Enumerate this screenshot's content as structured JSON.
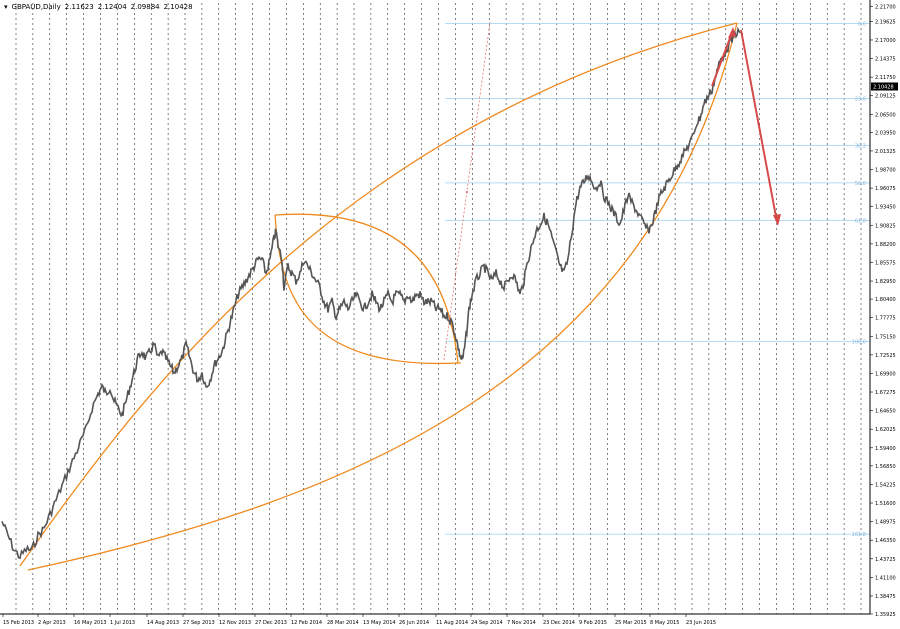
{
  "header": {
    "symbol": "GBPAUD,Daily",
    "open": "2.11623",
    "high": "2.12404",
    "low": "2.09884",
    "close": "2.10428"
  },
  "colors": {
    "background": "#ffffff",
    "price_line": "#555555",
    "grid": "#000000",
    "fib_line": "#9fcfee",
    "fib_label": "#7fb6df",
    "curve": "#f08a1e",
    "arrow": "#d64a4a",
    "trend_dotted": "#e06060",
    "price_badge_bg": "#000000",
    "price_badge_text": "#ffffff"
  },
  "chart_data": {
    "type": "line",
    "symbol": "GBPAUD",
    "timeframe": "Daily",
    "grid": true,
    "ylim": [
      1.35925,
      2.2222
    ],
    "current_price": 2.10428,
    "y_ticks": [
      "2.21700",
      "2.19625",
      "2.17000",
      "2.14375",
      "2.11750",
      "2.09125",
      "2.06500",
      "2.03950",
      "2.01325",
      "1.98700",
      "1.96075",
      "1.93450",
      "1.90825",
      "1.88200",
      "1.85575",
      "1.82950",
      "1.80400",
      "1.77775",
      "1.75150",
      "1.72525",
      "1.69900",
      "1.67275",
      "1.64650",
      "1.62025",
      "1.59400",
      "1.56850",
      "1.54225",
      "1.51600",
      "1.48975",
      "1.46350",
      "1.43725",
      "1.41100",
      "1.38475",
      "1.35925"
    ],
    "x_ticks": [
      "15 Feb 2013",
      "2 Apr 2013",
      "16 May 2013",
      "1 Jul 2013",
      "14 Aug 2013",
      "27 Sep 2013",
      "12 Nov 2013",
      "27 Dec 2013",
      "12 Feb 2014",
      "28 Mar 2014",
      "13 May 2014",
      "26 Jun 2014",
      "11 Aug 2014",
      "24 Sep 2014",
      "7 Nov 2014",
      "23 Dec 2014",
      "9 Feb 2015",
      "25 Mar 2015",
      "8 May 2015",
      "23 Jun 2015"
    ],
    "series": [
      {
        "values": [
          [
            0,
            1.49
          ],
          [
            6,
            1.47
          ],
          [
            12,
            1.45
          ],
          [
            18,
            1.44
          ],
          [
            24,
            1.45
          ],
          [
            30,
            1.45
          ],
          [
            36,
            1.47
          ],
          [
            42,
            1.48
          ],
          [
            48,
            1.5
          ],
          [
            54,
            1.52
          ],
          [
            60,
            1.54
          ],
          [
            66,
            1.56
          ],
          [
            72,
            1.58
          ],
          [
            78,
            1.6
          ],
          [
            84,
            1.62
          ],
          [
            90,
            1.65
          ],
          [
            96,
            1.67
          ],
          [
            100,
            1.68
          ],
          [
            104,
            1.67
          ],
          [
            108,
            1.68
          ],
          [
            112,
            1.66
          ],
          [
            116,
            1.65
          ],
          [
            120,
            1.64
          ],
          [
            124,
            1.66
          ],
          [
            128,
            1.68
          ],
          [
            132,
            1.7
          ],
          [
            136,
            1.72
          ],
          [
            140,
            1.73
          ],
          [
            144,
            1.72
          ],
          [
            148,
            1.73
          ],
          [
            152,
            1.74
          ],
          [
            156,
            1.72
          ],
          [
            160,
            1.73
          ],
          [
            164,
            1.72
          ],
          [
            168,
            1.71
          ],
          [
            172,
            1.7
          ],
          [
            176,
            1.71
          ],
          [
            180,
            1.72
          ],
          [
            184,
            1.74
          ],
          [
            188,
            1.72
          ],
          [
            192,
            1.7
          ],
          [
            196,
            1.69
          ],
          [
            200,
            1.7
          ],
          [
            204,
            1.68
          ],
          [
            208,
            1.69
          ],
          [
            212,
            1.71
          ],
          [
            216,
            1.72
          ],
          [
            220,
            1.73
          ],
          [
            224,
            1.75
          ],
          [
            228,
            1.77
          ],
          [
            232,
            1.79
          ],
          [
            236,
            1.81
          ],
          [
            240,
            1.82
          ],
          [
            244,
            1.83
          ],
          [
            248,
            1.84
          ],
          [
            252,
            1.85
          ],
          [
            256,
            1.86
          ],
          [
            260,
            1.86
          ],
          [
            264,
            1.84
          ],
          [
            268,
            1.86
          ],
          [
            272,
            1.89
          ],
          [
            274,
            1.9
          ],
          [
            276,
            1.88
          ],
          [
            280,
            1.86
          ],
          [
            282,
            1.82
          ],
          [
            286,
            1.85
          ],
          [
            290,
            1.84
          ],
          [
            294,
            1.83
          ],
          [
            298,
            1.84
          ],
          [
            302,
            1.86
          ],
          [
            306,
            1.85
          ],
          [
            310,
            1.84
          ],
          [
            314,
            1.83
          ],
          [
            318,
            1.82
          ],
          [
            322,
            1.8
          ],
          [
            326,
            1.79
          ],
          [
            330,
            1.8
          ],
          [
            334,
            1.78
          ],
          [
            338,
            1.79
          ],
          [
            342,
            1.8
          ],
          [
            346,
            1.79
          ],
          [
            350,
            1.8
          ],
          [
            354,
            1.81
          ],
          [
            358,
            1.8
          ],
          [
            362,
            1.79
          ],
          [
            366,
            1.8
          ],
          [
            370,
            1.81
          ],
          [
            374,
            1.8
          ],
          [
            378,
            1.79
          ],
          [
            382,
            1.8
          ],
          [
            386,
            1.81
          ],
          [
            390,
            1.8
          ],
          [
            394,
            1.81
          ],
          [
            398,
            1.81
          ],
          [
            402,
            1.8
          ],
          [
            406,
            1.81
          ],
          [
            410,
            1.8
          ],
          [
            414,
            1.81
          ],
          [
            418,
            1.81
          ],
          [
            422,
            1.8
          ],
          [
            426,
            1.8
          ],
          [
            430,
            1.8
          ],
          [
            434,
            1.79
          ],
          [
            438,
            1.79
          ],
          [
            442,
            1.78
          ],
          [
            446,
            1.78
          ],
          [
            450,
            1.77
          ],
          [
            454,
            1.75
          ],
          [
            457,
            1.73
          ],
          [
            459,
            1.72
          ],
          [
            461,
            1.72
          ],
          [
            464,
            1.75
          ],
          [
            467,
            1.79
          ],
          [
            470,
            1.81
          ],
          [
            474,
            1.83
          ],
          [
            478,
            1.84
          ],
          [
            482,
            1.85
          ],
          [
            486,
            1.84
          ],
          [
            490,
            1.83
          ],
          [
            494,
            1.84
          ],
          [
            498,
            1.83
          ],
          [
            502,
            1.82
          ],
          [
            506,
            1.83
          ],
          [
            510,
            1.84
          ],
          [
            514,
            1.83
          ],
          [
            518,
            1.81
          ],
          [
            522,
            1.83
          ],
          [
            526,
            1.86
          ],
          [
            530,
            1.88
          ],
          [
            534,
            1.9
          ],
          [
            538,
            1.91
          ],
          [
            542,
            1.92
          ],
          [
            546,
            1.91
          ],
          [
            550,
            1.89
          ],
          [
            554,
            1.87
          ],
          [
            558,
            1.85
          ],
          [
            562,
            1.84
          ],
          [
            566,
            1.86
          ],
          [
            570,
            1.9
          ],
          [
            574,
            1.94
          ],
          [
            578,
            1.96
          ],
          [
            582,
            1.97
          ],
          [
            586,
            1.98
          ],
          [
            590,
            1.97
          ],
          [
            594,
            1.96
          ],
          [
            598,
            1.97
          ],
          [
            602,
            1.95
          ],
          [
            606,
            1.94
          ],
          [
            610,
            1.93
          ],
          [
            614,
            1.92
          ],
          [
            618,
            1.91
          ],
          [
            622,
            1.93
          ],
          [
            626,
            1.95
          ],
          [
            630,
            1.94
          ],
          [
            634,
            1.93
          ],
          [
            638,
            1.92
          ],
          [
            642,
            1.91
          ],
          [
            646,
            1.9
          ],
          [
            650,
            1.91
          ],
          [
            654,
            1.93
          ],
          [
            658,
            1.95
          ],
          [
            662,
            1.96
          ],
          [
            666,
            1.97
          ],
          [
            670,
            1.98
          ],
          [
            674,
            1.99
          ],
          [
            678,
            2.0
          ],
          [
            682,
            2.01
          ],
          [
            686,
            2.02
          ],
          [
            690,
            2.03
          ],
          [
            694,
            2.05
          ],
          [
            698,
            2.06
          ],
          [
            702,
            2.08
          ],
          [
            706,
            2.09
          ],
          [
            710,
            2.1
          ],
          [
            714,
            2.12
          ],
          [
            718,
            2.14
          ],
          [
            722,
            2.15
          ],
          [
            726,
            2.16
          ],
          [
            730,
            2.17
          ],
          [
            734,
            2.18
          ],
          [
            738,
            2.18
          ]
        ]
      }
    ],
    "fibonacci_levels": [
      {
        "label": "0.0",
        "price": 2.1934
      },
      {
        "label": "23.6",
        "price": 2.0871
      },
      {
        "label": "38.2",
        "price": 2.0211
      },
      {
        "label": "50.0",
        "price": 1.9682
      },
      {
        "label": "61.8",
        "price": 1.9152
      },
      {
        "label": "100.0",
        "price": 1.7443
      },
      {
        "label": "161.8",
        "price": 1.4721
      }
    ]
  }
}
